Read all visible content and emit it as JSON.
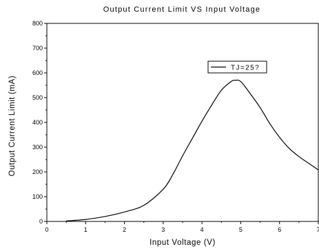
{
  "chart_data": {
    "type": "line",
    "title": "Output Current Limit VS Input Voltage",
    "xlabel": "Input Voltage (V)",
    "ylabel": "Output Current Limit (mA)",
    "xlim": [
      0,
      7
    ],
    "ylim": [
      0,
      800
    ],
    "xticks": [
      0,
      1,
      2,
      3,
      4,
      5,
      6,
      7
    ],
    "yticks": [
      0,
      100,
      200,
      300,
      400,
      500,
      600,
      700,
      800
    ],
    "grid": false,
    "legend_position": "top-right",
    "series": [
      {
        "name": "TJ=25?",
        "color": "#000000",
        "x": [
          0.5,
          1.0,
          1.5,
          2.0,
          2.5,
          3.0,
          3.25,
          3.5,
          3.75,
          4.0,
          4.25,
          4.5,
          4.75,
          4.85,
          5.0,
          5.25,
          5.5,
          5.75,
          6.0,
          6.25,
          6.5,
          6.75,
          7.0
        ],
        "y": [
          2,
          8,
          20,
          38,
          65,
          130,
          190,
          265,
          335,
          405,
          470,
          530,
          565,
          570,
          565,
          515,
          460,
          395,
          340,
          295,
          262,
          235,
          208
        ]
      }
    ]
  }
}
